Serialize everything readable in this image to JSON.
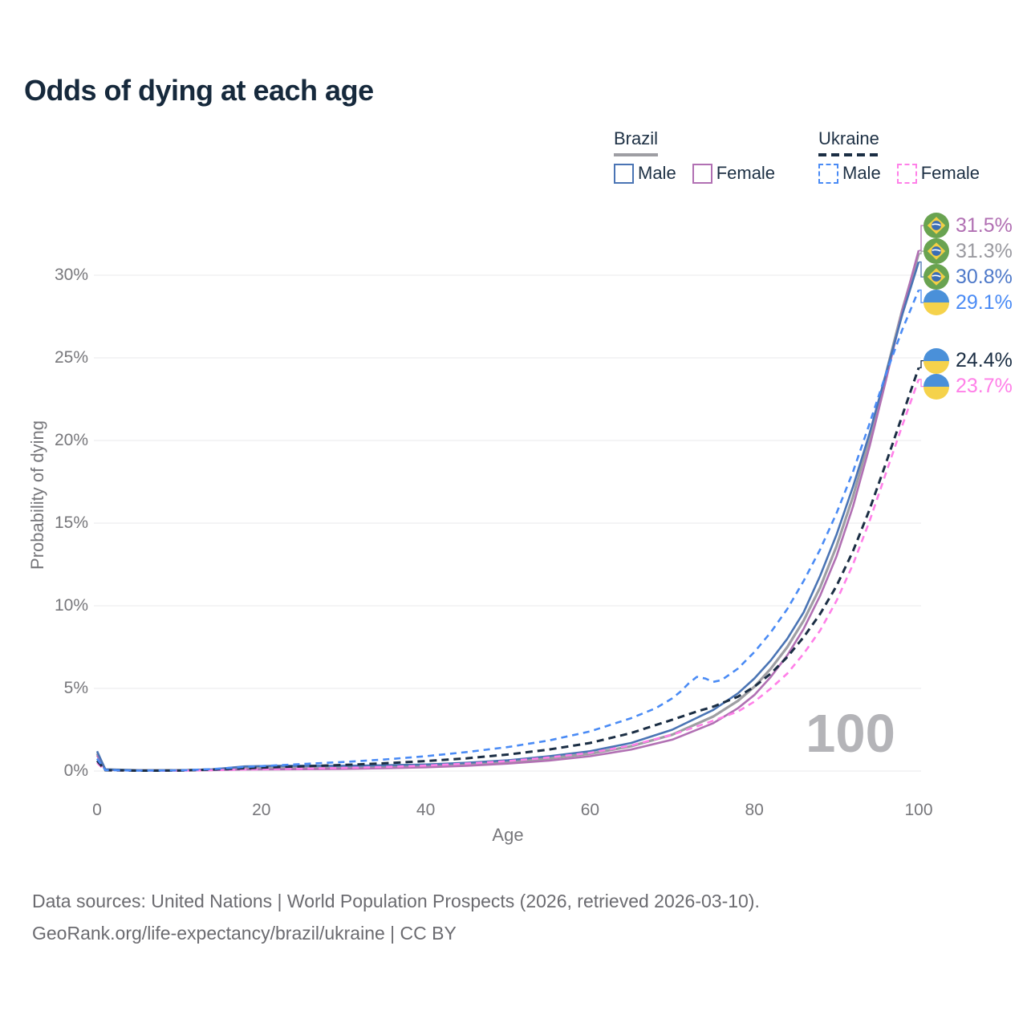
{
  "title": "Odds of dying at each age",
  "legend": {
    "groups": [
      {
        "country": "Brazil",
        "underline_style": "solid",
        "underline_color": "#9e9ea3",
        "items": [
          {
            "label": "Male",
            "color": "#4a74b4",
            "dashed": false
          },
          {
            "label": "Female",
            "color": "#b170b3",
            "dashed": false
          }
        ]
      },
      {
        "country": "Ukraine",
        "underline_style": "dashed",
        "underline_color": "#1b2e44",
        "items": [
          {
            "label": "Male",
            "color": "#4a8bf5",
            "dashed": true
          },
          {
            "label": "Female",
            "color": "#ff80e8",
            "dashed": true
          }
        ]
      }
    ]
  },
  "chart_data": {
    "type": "line",
    "title": "Odds of dying at each age",
    "xlabel": "Age",
    "ylabel": "Probability of dying",
    "xlim": [
      0,
      100
    ],
    "ylim": [
      0,
      32
    ],
    "xticks": [
      0,
      20,
      40,
      60,
      80,
      100
    ],
    "yticks": [
      {
        "v": 0,
        "label": "0%"
      },
      {
        "v": 5,
        "label": "5%"
      },
      {
        "v": 10,
        "label": "10%"
      },
      {
        "v": 15,
        "label": "15%"
      },
      {
        "v": 20,
        "label": "20%"
      },
      {
        "v": 25,
        "label": "25%"
      },
      {
        "v": 30,
        "label": "30%"
      }
    ],
    "grid": "horizontal",
    "legend_position": "top-right",
    "watermark_age": "100",
    "unit": "percent probability of dying at each age",
    "series": [
      {
        "id": "brazil-both",
        "name": "Brazil (both sexes)",
        "country": "Brazil",
        "sex": "Both",
        "color": "#9e9ea3",
        "dash": null,
        "width": 3.2,
        "end_label": {
          "text": "31.3%",
          "color": "#9a9aa0",
          "flag": "br"
        },
        "points": [
          [
            0,
            1.07
          ],
          [
            1,
            0.09
          ],
          [
            5,
            0.045
          ],
          [
            10,
            0.045
          ],
          [
            14,
            0.08
          ],
          [
            18,
            0.18
          ],
          [
            22,
            0.21
          ],
          [
            26,
            0.21
          ],
          [
            30,
            0.22
          ],
          [
            35,
            0.26
          ],
          [
            40,
            0.31
          ],
          [
            45,
            0.41
          ],
          [
            50,
            0.55
          ],
          [
            55,
            0.76
          ],
          [
            60,
            1.05
          ],
          [
            65,
            1.5
          ],
          [
            70,
            2.2
          ],
          [
            75,
            3.3
          ],
          [
            78,
            4.25
          ],
          [
            80,
            5.1
          ],
          [
            82,
            6.2
          ],
          [
            84,
            7.5
          ],
          [
            86,
            9.1
          ],
          [
            88,
            11.1
          ],
          [
            90,
            13.6
          ],
          [
            92,
            16.6
          ],
          [
            94,
            20.1
          ],
          [
            96,
            24.0
          ],
          [
            98,
            27.9
          ],
          [
            100,
            31.3
          ]
        ]
      },
      {
        "id": "brazil-female",
        "name": "Brazil Female",
        "country": "Brazil",
        "sex": "Female",
        "color": "#b170b3",
        "dash": null,
        "width": 2.6,
        "end_label": {
          "text": "31.5%",
          "color": "#b170b3",
          "flag": "br"
        },
        "points": [
          [
            0,
            0.95
          ],
          [
            1,
            0.08
          ],
          [
            5,
            0.04
          ],
          [
            10,
            0.04
          ],
          [
            14,
            0.06
          ],
          [
            18,
            0.09
          ],
          [
            22,
            0.1
          ],
          [
            26,
            0.11
          ],
          [
            30,
            0.13
          ],
          [
            35,
            0.17
          ],
          [
            40,
            0.23
          ],
          [
            45,
            0.32
          ],
          [
            50,
            0.45
          ],
          [
            55,
            0.63
          ],
          [
            60,
            0.9
          ],
          [
            65,
            1.3
          ],
          [
            70,
            1.9
          ],
          [
            75,
            2.9
          ],
          [
            78,
            3.8
          ],
          [
            80,
            4.6
          ],
          [
            82,
            5.7
          ],
          [
            84,
            7.0
          ],
          [
            86,
            8.6
          ],
          [
            88,
            10.6
          ],
          [
            90,
            13.0
          ],
          [
            92,
            16.0
          ],
          [
            94,
            19.6
          ],
          [
            96,
            23.6
          ],
          [
            98,
            27.8
          ],
          [
            100,
            31.5
          ]
        ]
      },
      {
        "id": "brazil-male",
        "name": "Brazil Male",
        "country": "Brazil",
        "sex": "Male",
        "color": "#4a74b4",
        "dash": null,
        "width": 2.6,
        "end_label": {
          "text": "30.8%",
          "color": "#4e79c9",
          "flag": "br"
        },
        "points": [
          [
            0,
            1.2
          ],
          [
            1,
            0.1
          ],
          [
            5,
            0.05
          ],
          [
            10,
            0.05
          ],
          [
            14,
            0.1
          ],
          [
            18,
            0.28
          ],
          [
            22,
            0.32
          ],
          [
            26,
            0.32
          ],
          [
            30,
            0.32
          ],
          [
            35,
            0.35
          ],
          [
            40,
            0.4
          ],
          [
            45,
            0.5
          ],
          [
            50,
            0.65
          ],
          [
            55,
            0.9
          ],
          [
            60,
            1.2
          ],
          [
            65,
            1.7
          ],
          [
            70,
            2.5
          ],
          [
            75,
            3.7
          ],
          [
            78,
            4.7
          ],
          [
            80,
            5.6
          ],
          [
            82,
            6.7
          ],
          [
            84,
            8.0
          ],
          [
            86,
            9.6
          ],
          [
            88,
            11.8
          ],
          [
            90,
            14.3
          ],
          [
            92,
            17.2
          ],
          [
            94,
            20.4
          ],
          [
            96,
            24.0
          ],
          [
            98,
            27.6
          ],
          [
            100,
            30.8
          ]
        ]
      },
      {
        "id": "ukraine-female",
        "name": "Ukraine Female",
        "country": "Ukraine",
        "sex": "Female",
        "color": "#ff80e8",
        "dash": "8 6",
        "width": 2.6,
        "end_label": {
          "text": "23.7%",
          "color": "#ff80e8",
          "flag": "ua"
        },
        "points": [
          [
            0,
            0.5
          ],
          [
            1,
            0.04
          ],
          [
            5,
            0.02
          ],
          [
            10,
            0.025
          ],
          [
            14,
            0.05
          ],
          [
            18,
            0.09
          ],
          [
            22,
            0.12
          ],
          [
            26,
            0.15
          ],
          [
            30,
            0.19
          ],
          [
            35,
            0.25
          ],
          [
            40,
            0.33
          ],
          [
            45,
            0.45
          ],
          [
            50,
            0.6
          ],
          [
            55,
            0.82
          ],
          [
            60,
            1.1
          ],
          [
            65,
            1.55
          ],
          [
            70,
            2.2
          ],
          [
            73,
            2.7
          ],
          [
            75,
            3.05
          ],
          [
            78,
            3.6
          ],
          [
            80,
            4.2
          ],
          [
            82,
            5.0
          ],
          [
            84,
            5.9
          ],
          [
            86,
            7.1
          ],
          [
            88,
            8.5
          ],
          [
            90,
            10.3
          ],
          [
            92,
            12.5
          ],
          [
            94,
            15.1
          ],
          [
            96,
            18.0
          ],
          [
            98,
            20.9
          ],
          [
            100,
            23.7
          ]
        ]
      },
      {
        "id": "ukraine-both",
        "name": "Ukraine (both sexes)",
        "country": "Ukraine",
        "sex": "Both",
        "color": "#1b2e44",
        "dash": "9 6",
        "width": 3.0,
        "end_label": {
          "text": "24.4%",
          "color": "#1b2e44",
          "flag": "ua"
        },
        "points": [
          [
            0,
            0.62
          ],
          [
            1,
            0.05
          ],
          [
            5,
            0.025
          ],
          [
            10,
            0.03
          ],
          [
            14,
            0.09
          ],
          [
            18,
            0.17
          ],
          [
            22,
            0.24
          ],
          [
            26,
            0.3
          ],
          [
            30,
            0.37
          ],
          [
            35,
            0.47
          ],
          [
            40,
            0.6
          ],
          [
            45,
            0.77
          ],
          [
            50,
            1.0
          ],
          [
            55,
            1.3
          ],
          [
            60,
            1.7
          ],
          [
            65,
            2.3
          ],
          [
            70,
            3.1
          ],
          [
            73,
            3.6
          ],
          [
            75,
            3.9
          ],
          [
            78,
            4.5
          ],
          [
            80,
            5.1
          ],
          [
            82,
            5.9
          ],
          [
            84,
            6.9
          ],
          [
            86,
            8.1
          ],
          [
            88,
            9.5
          ],
          [
            90,
            11.2
          ],
          [
            92,
            13.3
          ],
          [
            94,
            15.8
          ],
          [
            96,
            18.6
          ],
          [
            98,
            21.5
          ],
          [
            100,
            24.4
          ]
        ]
      },
      {
        "id": "ukraine-male",
        "name": "Ukraine Male",
        "country": "Ukraine",
        "sex": "Male",
        "color": "#4a8bf5",
        "dash": "8 6",
        "width": 2.6,
        "end_label": {
          "text": "29.1%",
          "color": "#4a8bf5",
          "flag": "ua"
        },
        "points": [
          [
            0,
            0.75
          ],
          [
            1,
            0.06
          ],
          [
            5,
            0.03
          ],
          [
            10,
            0.04
          ],
          [
            14,
            0.12
          ],
          [
            18,
            0.25
          ],
          [
            22,
            0.35
          ],
          [
            26,
            0.45
          ],
          [
            30,
            0.55
          ],
          [
            35,
            0.7
          ],
          [
            40,
            0.9
          ],
          [
            45,
            1.15
          ],
          [
            50,
            1.45
          ],
          [
            55,
            1.85
          ],
          [
            60,
            2.4
          ],
          [
            65,
            3.2
          ],
          [
            68,
            3.8
          ],
          [
            70,
            4.4
          ],
          [
            71,
            4.8
          ],
          [
            72,
            5.3
          ],
          [
            73,
            5.7
          ],
          [
            74,
            5.6
          ],
          [
            75,
            5.4
          ],
          [
            76,
            5.5
          ],
          [
            78,
            6.2
          ],
          [
            80,
            7.2
          ],
          [
            82,
            8.4
          ],
          [
            84,
            9.8
          ],
          [
            86,
            11.5
          ],
          [
            88,
            13.4
          ],
          [
            90,
            15.6
          ],
          [
            92,
            18.1
          ],
          [
            94,
            21.0
          ],
          [
            96,
            24.0
          ],
          [
            98,
            26.7
          ],
          [
            100,
            29.1
          ]
        ]
      }
    ]
  },
  "footer": {
    "line1": "Data sources: United Nations | World Population Prospects (2026, retrieved 2026-03-10).",
    "line2": "GeoRank.org/life-expectancy/brazil/ukraine | CC BY"
  }
}
